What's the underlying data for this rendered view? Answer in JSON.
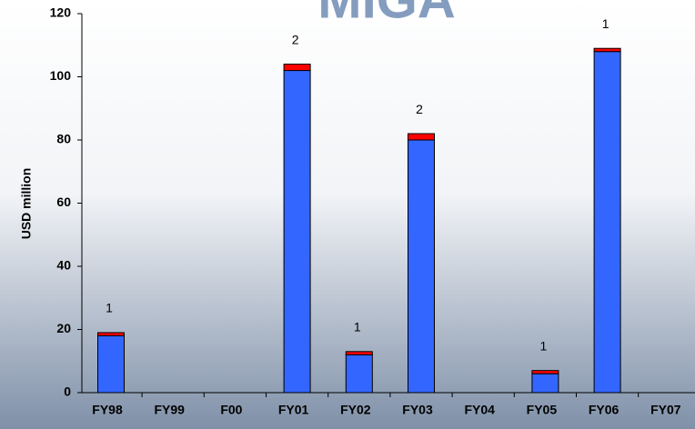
{
  "chart_data": {
    "type": "stacked_bar",
    "logo": "MIGA",
    "ylabel": "USD million",
    "categories": [
      "FY98",
      "FY99",
      "F00",
      "FY01",
      "FY02",
      "FY03",
      "FY04",
      "FY05",
      "FY06",
      "FY07"
    ],
    "series": [
      {
        "color": "#3366ff",
        "values": [
          18,
          null,
          null,
          102,
          12,
          80,
          null,
          6,
          108,
          null
        ]
      },
      {
        "color": "#ff0000",
        "values": [
          1,
          null,
          null,
          2,
          1,
          2,
          null,
          1,
          1,
          null
        ]
      }
    ],
    "annotations": [
      {
        "category": "FY98",
        "text": "1"
      },
      {
        "category": "FY01",
        "text": "2"
      },
      {
        "category": "FY02",
        "text": "1"
      },
      {
        "category": "FY03",
        "text": "2"
      },
      {
        "category": "FY05",
        "text": "1"
      },
      {
        "category": "FY06",
        "text": "1"
      }
    ],
    "ylim": [
      0,
      120
    ],
    "yticks": [
      0,
      20,
      40,
      60,
      80,
      100,
      120
    ]
  }
}
